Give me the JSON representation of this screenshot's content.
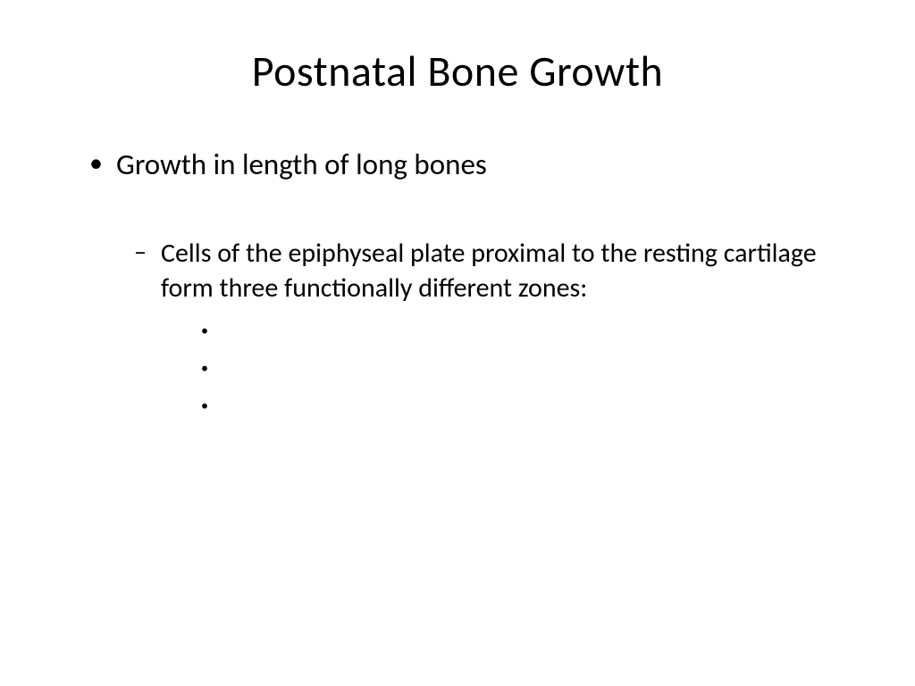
{
  "slide": {
    "title": "Postnatal Bone Growth",
    "bullets": {
      "level1": {
        "item1": "Growth in length of long bones"
      },
      "level2": {
        "item1": "Cells of the epiphyseal plate proximal to the resting cartilage form three functionally different zones:"
      },
      "level3": {
        "item1": "",
        "item2": "",
        "item3": ""
      }
    }
  },
  "styling": {
    "background_color": "#ffffff",
    "text_color": "#000000",
    "title_fontsize": 48,
    "level1_fontsize": 33,
    "level2_fontsize": 30,
    "level3_fontsize": 24,
    "font_family": "Calibri"
  }
}
